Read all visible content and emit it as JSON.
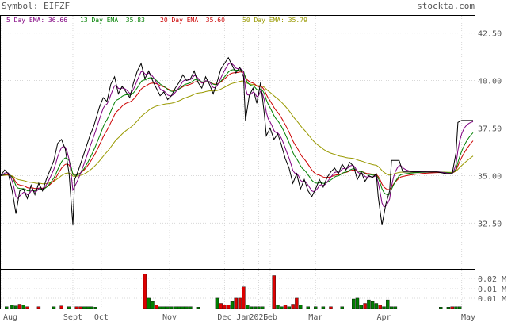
{
  "header": {
    "symbol_text": "Symbol: EIFZF",
    "brand_text": "stockta.com"
  },
  "legend": [
    {
      "label": "5 Day EMA: 36.66",
      "color": "#800080"
    },
    {
      "label": "13 Day EMA: 35.83",
      "color": "#008000"
    },
    {
      "label": "20 Day EMA: 35.60",
      "color": "#cc0000"
    },
    {
      "label": "50 Day EMA: 35.79",
      "color": "#999900"
    }
  ],
  "chart_data": {
    "type": "line",
    "x_axis_labels": [
      "Aug",
      "Sept",
      "Oct",
      "Nov",
      "Dec",
      "Jan",
      "2025",
      "Feb",
      "Mar",
      "Apr",
      "May"
    ],
    "x_label_positions": [
      0,
      38,
      53,
      89,
      118,
      128,
      136,
      142,
      166,
      202,
      243
    ],
    "n_days": 250,
    "y_ticks": [
      32.5,
      35.0,
      37.5,
      40.0,
      42.5
    ],
    "y_tick_labels": [
      "32.50",
      "35.00",
      "37.50",
      "40.00",
      "42.50"
    ],
    "ylim": [
      30.1,
      43.4
    ],
    "price_keys": [
      [
        0,
        35.0
      ],
      [
        2,
        35.3
      ],
      [
        4,
        35.1
      ],
      [
        6,
        34.2
      ],
      [
        8,
        33.0
      ],
      [
        10,
        34.2
      ],
      [
        12,
        34.3
      ],
      [
        14,
        33.8
      ],
      [
        16,
        34.5
      ],
      [
        18,
        34.0
      ],
      [
        20,
        34.6
      ],
      [
        22,
        34.2
      ],
      [
        24,
        34.8
      ],
      [
        26,
        35.3
      ],
      [
        28,
        35.8
      ],
      [
        30,
        36.7
      ],
      [
        32,
        36.9
      ],
      [
        34,
        36.4
      ],
      [
        36,
        35.1
      ],
      [
        38,
        32.4
      ],
      [
        39,
        34.8
      ],
      [
        41,
        35.3
      ],
      [
        43,
        35.9
      ],
      [
        45,
        36.5
      ],
      [
        47,
        37.1
      ],
      [
        49,
        37.6
      ],
      [
        52,
        38.6
      ],
      [
        54,
        39.1
      ],
      [
        56,
        38.9
      ],
      [
        58,
        39.8
      ],
      [
        60,
        40.2
      ],
      [
        62,
        39.3
      ],
      [
        64,
        39.7
      ],
      [
        66,
        39.4
      ],
      [
        68,
        39.1
      ],
      [
        70,
        39.9
      ],
      [
        72,
        40.5
      ],
      [
        74,
        40.9
      ],
      [
        76,
        40.1
      ],
      [
        78,
        40.5
      ],
      [
        80,
        40.0
      ],
      [
        82,
        39.6
      ],
      [
        84,
        39.2
      ],
      [
        86,
        39.4
      ],
      [
        88,
        39.0
      ],
      [
        90,
        39.2
      ],
      [
        92,
        39.6
      ],
      [
        94,
        39.9
      ],
      [
        96,
        40.3
      ],
      [
        98,
        40.0
      ],
      [
        100,
        40.1
      ],
      [
        102,
        40.5
      ],
      [
        104,
        39.9
      ],
      [
        106,
        39.6
      ],
      [
        108,
        40.2
      ],
      [
        110,
        39.8
      ],
      [
        112,
        39.3
      ],
      [
        114,
        39.9
      ],
      [
        116,
        40.6
      ],
      [
        118,
        40.9
      ],
      [
        120,
        41.2
      ],
      [
        122,
        40.8
      ],
      [
        124,
        40.4
      ],
      [
        126,
        40.7
      ],
      [
        128,
        40.2
      ],
      [
        129,
        37.9
      ],
      [
        131,
        39.2
      ],
      [
        133,
        39.6
      ],
      [
        135,
        38.8
      ],
      [
        137,
        39.9
      ],
      [
        139,
        38.2
      ],
      [
        140,
        37.1
      ],
      [
        142,
        37.5
      ],
      [
        144,
        36.9
      ],
      [
        146,
        37.2
      ],
      [
        148,
        36.6
      ],
      [
        150,
        35.9
      ],
      [
        152,
        35.4
      ],
      [
        154,
        34.6
      ],
      [
        156,
        35.1
      ],
      [
        158,
        34.3
      ],
      [
        160,
        34.8
      ],
      [
        162,
        34.2
      ],
      [
        164,
        33.9
      ],
      [
        166,
        34.3
      ],
      [
        168,
        34.8
      ],
      [
        170,
        34.4
      ],
      [
        172,
        34.9
      ],
      [
        174,
        35.2
      ],
      [
        176,
        35.4
      ],
      [
        178,
        35.1
      ],
      [
        180,
        35.6
      ],
      [
        182,
        35.3
      ],
      [
        184,
        35.7
      ],
      [
        186,
        35.5
      ],
      [
        188,
        34.8
      ],
      [
        190,
        35.2
      ],
      [
        192,
        34.7
      ],
      [
        194,
        35.0
      ],
      [
        196,
        34.9
      ],
      [
        198,
        35.1
      ],
      [
        199,
        33.9
      ],
      [
        201,
        32.4
      ],
      [
        203,
        33.5
      ],
      [
        205,
        34.2
      ],
      [
        206,
        35.8
      ],
      [
        208,
        35.8
      ],
      [
        210,
        35.8
      ],
      [
        212,
        35.2
      ],
      [
        215,
        35.2
      ],
      [
        220,
        35.2
      ],
      [
        225,
        35.2
      ],
      [
        230,
        35.2
      ],
      [
        235,
        35.1
      ],
      [
        238,
        35.1
      ],
      [
        240,
        36.2
      ],
      [
        241,
        37.8
      ],
      [
        243,
        37.9
      ]
    ],
    "ema_periods": [
      5,
      13,
      20,
      50
    ],
    "volume_ticks": [
      "0.01 M",
      "0.01 M",
      "0.02 M"
    ],
    "volume_max": 0.022,
    "volume": [
      [
        3,
        0.001,
        "g"
      ],
      [
        6,
        0.002,
        "g"
      ],
      [
        8,
        0.0015,
        "g"
      ],
      [
        10,
        0.0025,
        "r"
      ],
      [
        12,
        0.002,
        "g"
      ],
      [
        14,
        0.001,
        "r"
      ],
      [
        20,
        0.001,
        "r"
      ],
      [
        28,
        0.001,
        "g"
      ],
      [
        32,
        0.0015,
        "r"
      ],
      [
        36,
        0.001,
        "g"
      ],
      [
        40,
        0.001,
        "r"
      ],
      [
        42,
        0.001,
        "r"
      ],
      [
        44,
        0.001,
        "g"
      ],
      [
        46,
        0.001,
        "g"
      ],
      [
        48,
        0.001,
        "g"
      ],
      [
        50,
        0.0008,
        "g"
      ],
      [
        76,
        0.02,
        "r"
      ],
      [
        78,
        0.006,
        "g"
      ],
      [
        80,
        0.004,
        "g"
      ],
      [
        82,
        0.002,
        "r"
      ],
      [
        84,
        0.001,
        "g"
      ],
      [
        86,
        0.001,
        "g"
      ],
      [
        88,
        0.001,
        "g"
      ],
      [
        90,
        0.001,
        "g"
      ],
      [
        92,
        0.001,
        "g"
      ],
      [
        94,
        0.001,
        "g"
      ],
      [
        96,
        0.001,
        "g"
      ],
      [
        98,
        0.001,
        "g"
      ],
      [
        100,
        0.001,
        "g"
      ],
      [
        104,
        0.0008,
        "g"
      ],
      [
        114,
        0.006,
        "g"
      ],
      [
        116,
        0.003,
        "r"
      ],
      [
        118,
        0.002,
        "r"
      ],
      [
        120,
        0.002,
        "r"
      ],
      [
        122,
        0.004,
        "g"
      ],
      [
        124,
        0.006,
        "r"
      ],
      [
        126,
        0.006,
        "r"
      ],
      [
        128,
        0.0125,
        "r"
      ],
      [
        130,
        0.002,
        "g"
      ],
      [
        132,
        0.001,
        "g"
      ],
      [
        134,
        0.001,
        "g"
      ],
      [
        136,
        0.001,
        "g"
      ],
      [
        138,
        0.001,
        "g"
      ],
      [
        144,
        0.019,
        "r"
      ],
      [
        146,
        0.002,
        "g"
      ],
      [
        148,
        0.001,
        "g"
      ],
      [
        150,
        0.002,
        "r"
      ],
      [
        152,
        0.001,
        "g"
      ],
      [
        154,
        0.0025,
        "r"
      ],
      [
        156,
        0.006,
        "r"
      ],
      [
        158,
        0.002,
        "g"
      ],
      [
        162,
        0.001,
        "g"
      ],
      [
        166,
        0.001,
        "g"
      ],
      [
        170,
        0.001,
        "g"
      ],
      [
        174,
        0.001,
        "r"
      ],
      [
        180,
        0.001,
        "g"
      ],
      [
        186,
        0.0055,
        "g"
      ],
      [
        188,
        0.006,
        "g"
      ],
      [
        190,
        0.002,
        "g"
      ],
      [
        192,
        0.003,
        "r"
      ],
      [
        194,
        0.005,
        "g"
      ],
      [
        196,
        0.004,
        "g"
      ],
      [
        198,
        0.003,
        "g"
      ],
      [
        200,
        0.002,
        "r"
      ],
      [
        202,
        0.001,
        "g"
      ],
      [
        204,
        0.005,
        "g"
      ],
      [
        206,
        0.001,
        "g"
      ],
      [
        208,
        0.001,
        "g"
      ],
      [
        232,
        0.0008,
        "g"
      ],
      [
        236,
        0.0008,
        "g"
      ],
      [
        238,
        0.001,
        "r"
      ],
      [
        240,
        0.001,
        "g"
      ],
      [
        242,
        0.001,
        "g"
      ]
    ]
  }
}
